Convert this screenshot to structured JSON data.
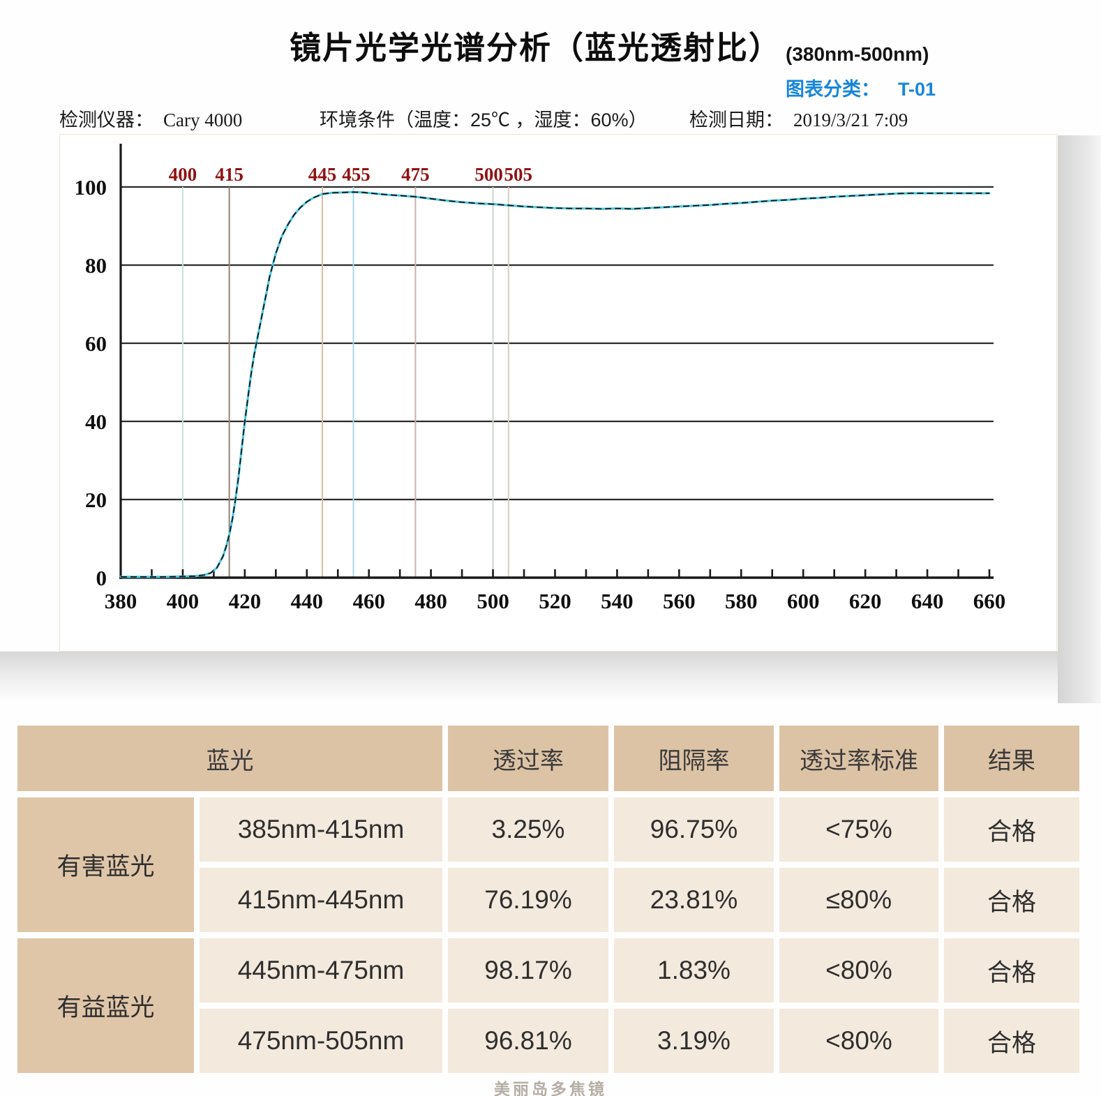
{
  "header": {
    "title": "镜片光学光谱分析（蓝光透射比）",
    "range_label": "(380nm-500nm)",
    "category_label": "图表分类：",
    "category_value": "T-01",
    "accent_blue": "#1786d8"
  },
  "info": {
    "instrument_label": "检测仪器：",
    "instrument_value": "Cary 4000",
    "environment": "环境条件（温度：25℃ ，湿度：60%）",
    "date_label": "检测日期：",
    "date_value": "2019/3/21 7:09"
  },
  "chart_data": {
    "type": "line",
    "title": "镜片光学光谱分析（蓝光透射比）",
    "xlabel": "",
    "ylabel": "",
    "xlim": [
      380,
      660
    ],
    "ylim": [
      0,
      100
    ],
    "x_tick_minor_step": 10,
    "x_tick_label_step": 20,
    "y_ticks": [
      0,
      20,
      40,
      60,
      80,
      100
    ],
    "grid": "horizontal",
    "legend": "none",
    "line_color": "#4ec7de",
    "overlay_color": "#141414",
    "axis_color": "#1a1a1a",
    "marker_label_color": "#8e1212",
    "markers": [
      {
        "wavelength": 400,
        "color": "#c2e4da",
        "label_dx": 0
      },
      {
        "wavelength": 415,
        "color": "#938379",
        "label_dx": 0
      },
      {
        "wavelength": 445,
        "color": "#dcbc9e",
        "label_dx": 0
      },
      {
        "wavelength": 455,
        "color": "#a9d9ea",
        "label_dx": 4
      },
      {
        "wavelength": 475,
        "color": "#c9b0b0",
        "label_dx": 0
      },
      {
        "wavelength": 500,
        "color": "#ccd6cb",
        "label_dx": -6
      },
      {
        "wavelength": 505,
        "color": "#dacfb9",
        "label_dx": 14
      }
    ],
    "series": [
      {
        "name": "蓝光透射比",
        "x": [
          380,
          390,
          395,
          400,
          404,
          407,
          409,
          411,
          413,
          414,
          415,
          416,
          417,
          418,
          419,
          420,
          421,
          422,
          423,
          424,
          425,
          426,
          427,
          428,
          429,
          430,
          432,
          434,
          436,
          438,
          440,
          442,
          445,
          448,
          452,
          455,
          458,
          462,
          466,
          470,
          475,
          480,
          485,
          490,
          495,
          500,
          505,
          510,
          515,
          520,
          525,
          530,
          535,
          540,
          545,
          550,
          555,
          560,
          565,
          570,
          575,
          580,
          585,
          590,
          595,
          600,
          605,
          610,
          615,
          620,
          625,
          630,
          635,
          640,
          645,
          650,
          655,
          660
        ],
        "y": [
          0.2,
          0.2,
          0.2,
          0.3,
          0.4,
          0.7,
          1.2,
          2.5,
          5.5,
          8,
          11,
          15,
          20,
          26,
          33,
          40,
          46,
          52,
          57,
          61,
          65,
          69,
          73,
          77,
          80,
          83,
          87.5,
          90.5,
          93,
          94.8,
          96.2,
          97.2,
          98.2,
          98.5,
          98.6,
          98.7,
          98.6,
          98.3,
          98.0,
          97.8,
          97.5,
          97.0,
          96.5,
          96.1,
          95.8,
          95.6,
          95.3,
          95.0,
          94.8,
          94.6,
          94.5,
          94.5,
          94.4,
          94.5,
          94.4,
          94.6,
          94.8,
          95.0,
          95.2,
          95.4,
          95.7,
          95.9,
          96.2,
          96.5,
          96.7,
          97.0,
          97.2,
          97.5,
          97.7,
          97.9,
          98.1,
          98.3,
          98.4,
          98.4,
          98.4,
          98.4,
          98.4,
          98.4
        ]
      }
    ]
  },
  "table": {
    "headers": [
      "蓝光",
      "透过率",
      "阻隔率",
      "透过率标准",
      "结果"
    ],
    "groups": [
      {
        "label": "有害蓝光",
        "rows": [
          {
            "range": "385nm-415nm",
            "transmittance": "3.25%",
            "blocking": "96.75%",
            "standard": "<75%",
            "result": "合格"
          },
          {
            "range": "415nm-445nm",
            "transmittance": "76.19%",
            "blocking": "23.81%",
            "standard": "≤80%",
            "result": "合格"
          }
        ]
      },
      {
        "label": "有益蓝光",
        "rows": [
          {
            "range": "445nm-475nm",
            "transmittance": "98.17%",
            "blocking": "1.83%",
            "standard": "<80%",
            "result": "合格"
          },
          {
            "range": "475nm-505nm",
            "transmittance": "96.81%",
            "blocking": "3.19%",
            "standard": "<80%",
            "result": "合格"
          }
        ]
      }
    ],
    "colors": {
      "header_bg": "#ddc3a6",
      "group_bg": "#e0c6a9",
      "row_bg": "#f3e9dc"
    }
  },
  "footer": {
    "watermark": "美丽岛多焦镜"
  }
}
